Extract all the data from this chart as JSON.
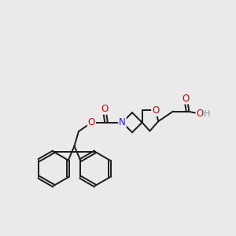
{
  "background_color": "#eaeaea",
  "bond_color": "#1a1a1a",
  "bond_width": 1.4,
  "atom_colors": {
    "O": "#dd0000",
    "N": "#2222cc",
    "H": "#5f9ea0",
    "C": "#1a1a1a"
  },
  "font_size_atom": 8.5,
  "font_size_H": 8
}
